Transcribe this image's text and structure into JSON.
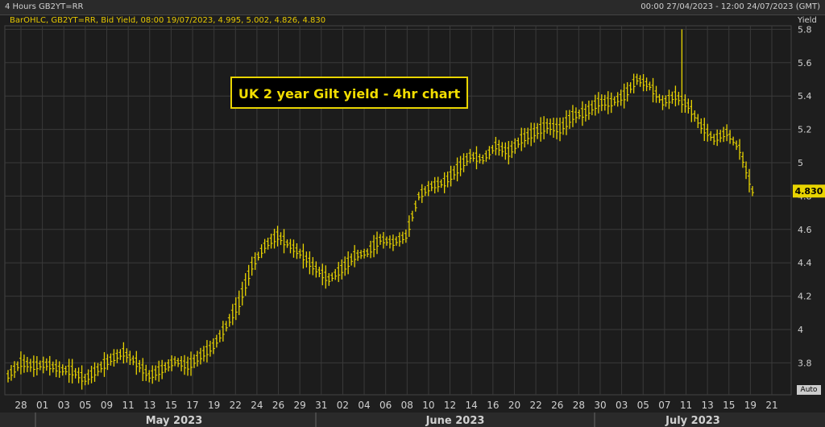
{
  "header": {
    "left": "4 Hours GB2YT=RR",
    "right": "00:00 27/04/2023 - 12:00 24/07/2023 (GMT)"
  },
  "legend": "BarOHLC, GB2YT=RR, Bid Yield, 08:00 19/07/2023, 4.995, 5.002, 4.826, 4.830",
  "auto_label": "Auto",
  "colors": {
    "bars": "#e8d400",
    "background": "#1e1e1e",
    "grid": "#3a3a3a"
  },
  "chart_data": {
    "type": "bar",
    "title": "UK 2 year Gilt yield - 4hr chart",
    "ylabel": "Yield",
    "ylim": [
      3.7,
      5.85
    ],
    "yticks": [
      "3.8",
      "4",
      "4.2",
      "4.4",
      "4.6",
      "4.8",
      "5",
      "5.2",
      "5.4",
      "5.6",
      "5.8"
    ],
    "last_value_label": "4.830",
    "x_ticks": [
      "28",
      "01",
      "03",
      "05",
      "09",
      "11",
      "13",
      "15",
      "17",
      "19",
      "22",
      "24",
      "26",
      "29",
      "31",
      "02",
      "04",
      "06",
      "08",
      "10",
      "12",
      "14",
      "16",
      "20",
      "22",
      "26",
      "28",
      "30",
      "03",
      "05",
      "07",
      "11",
      "13",
      "15",
      "19",
      "21"
    ],
    "months": [
      "May 2023",
      "June 2023",
      "July 2023"
    ],
    "grid": true,
    "bars": [
      {
        "day": "27/04",
        "c": 3.72
      },
      {
        "day": "28/04",
        "c": 3.8
      },
      {
        "day": "01/05",
        "c": 3.78
      },
      {
        "day": "02/05",
        "c": 3.79
      },
      {
        "day": "03/05",
        "c": 3.76
      },
      {
        "day": "04/05",
        "c": 3.75
      },
      {
        "day": "05/05",
        "c": 3.7
      },
      {
        "day": "09/05",
        "c": 3.76
      },
      {
        "day": "10/05",
        "c": 3.82
      },
      {
        "day": "11/05",
        "c": 3.86
      },
      {
        "day": "12/05",
        "c": 3.8
      },
      {
        "day": "15/05",
        "c": 3.72
      },
      {
        "day": "16/05",
        "c": 3.76
      },
      {
        "day": "17/05",
        "c": 3.81
      },
      {
        "day": "18/05",
        "c": 3.78
      },
      {
        "day": "19/05",
        "c": 3.84
      },
      {
        "day": "22/05",
        "c": 3.9
      },
      {
        "day": "23/05",
        "c": 4.02
      },
      {
        "day": "24/05",
        "c": 4.16
      },
      {
        "day": "25/05",
        "c": 4.38
      },
      {
        "day": "26/05",
        "c": 4.5
      },
      {
        "day": "29/05",
        "c": 4.56
      },
      {
        "day": "30/05",
        "c": 4.5
      },
      {
        "day": "31/05",
        "c": 4.44
      },
      {
        "day": "01/06",
        "c": 4.36
      },
      {
        "day": "02/06",
        "c": 4.3
      },
      {
        "day": "05/06",
        "c": 4.36
      },
      {
        "day": "06/06",
        "c": 4.44
      },
      {
        "day": "07/06",
        "c": 4.46
      },
      {
        "day": "08/06",
        "c": 4.54
      },
      {
        "day": "09/06",
        "c": 4.52
      },
      {
        "day": "12/06",
        "c": 4.56
      },
      {
        "day": "13/06",
        "c": 4.8
      },
      {
        "day": "14/06",
        "c": 4.86
      },
      {
        "day": "15/06",
        "c": 4.88
      },
      {
        "day": "16/06",
        "c": 4.96
      },
      {
        "day": "19/06",
        "c": 5.04
      },
      {
        "day": "20/06",
        "c": 5.02
      },
      {
        "day": "21/06",
        "c": 5.1
      },
      {
        "day": "22/06",
        "c": 5.06
      },
      {
        "day": "23/06",
        "c": 5.14
      },
      {
        "day": "26/06",
        "c": 5.18
      },
      {
        "day": "27/06",
        "c": 5.22
      },
      {
        "day": "28/06",
        "c": 5.2
      },
      {
        "day": "29/06",
        "c": 5.28
      },
      {
        "day": "30/06",
        "c": 5.3
      },
      {
        "day": "03/07",
        "c": 5.36
      },
      {
        "day": "04/07",
        "c": 5.36
      },
      {
        "day": "05/07",
        "c": 5.4
      },
      {
        "day": "06/07",
        "c": 5.5
      },
      {
        "day": "07/07",
        "c": 5.46
      },
      {
        "day": "10/07",
        "c": 5.36
      },
      {
        "day": "11/07",
        "c": 5.4
      },
      {
        "day": "12/07",
        "c": 5.34
      },
      {
        "day": "13/07",
        "c": 5.22
      },
      {
        "day": "14/07",
        "c": 5.14
      },
      {
        "day": "17/07",
        "c": 5.18
      },
      {
        "day": "18/07",
        "c": 5.08
      },
      {
        "day": "19/07",
        "c": 4.83
      }
    ]
  }
}
